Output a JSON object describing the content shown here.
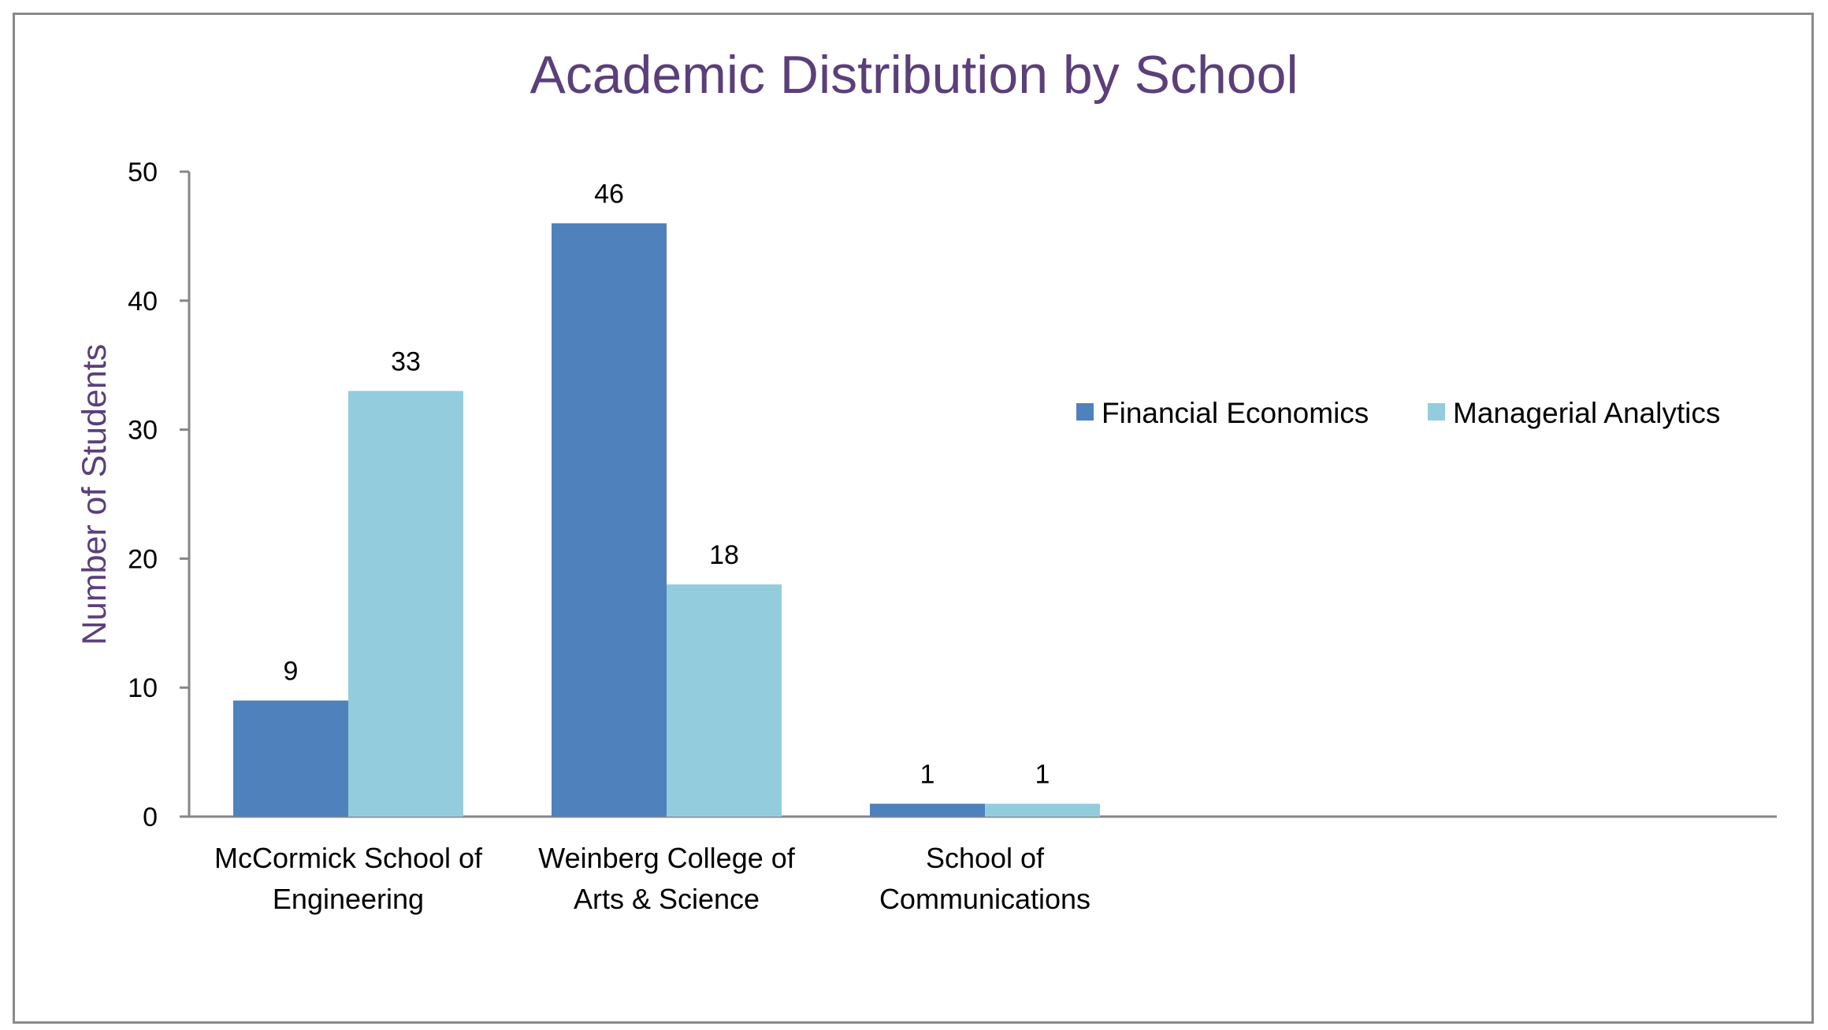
{
  "chart_data": {
    "type": "bar",
    "title": "Academic Distribution by School",
    "xlabel": "",
    "ylabel": "Number of Students",
    "ylim": [
      0,
      50
    ],
    "yticks": [
      0,
      10,
      20,
      30,
      40,
      50
    ],
    "categories": [
      [
        "McCormick School of",
        "Engineering"
      ],
      [
        "Weinberg College of",
        "Arts & Science"
      ],
      [
        "School of",
        "Communications"
      ]
    ],
    "series": [
      {
        "name": "Financial Economics",
        "color": "#4f81bd",
        "values": [
          9,
          46,
          1
        ]
      },
      {
        "name": "Managerial Analytics",
        "color": "#93cddd",
        "values": [
          33,
          18,
          1
        ]
      }
    ],
    "legend_position": "right",
    "grid": false,
    "data_labels": true
  }
}
